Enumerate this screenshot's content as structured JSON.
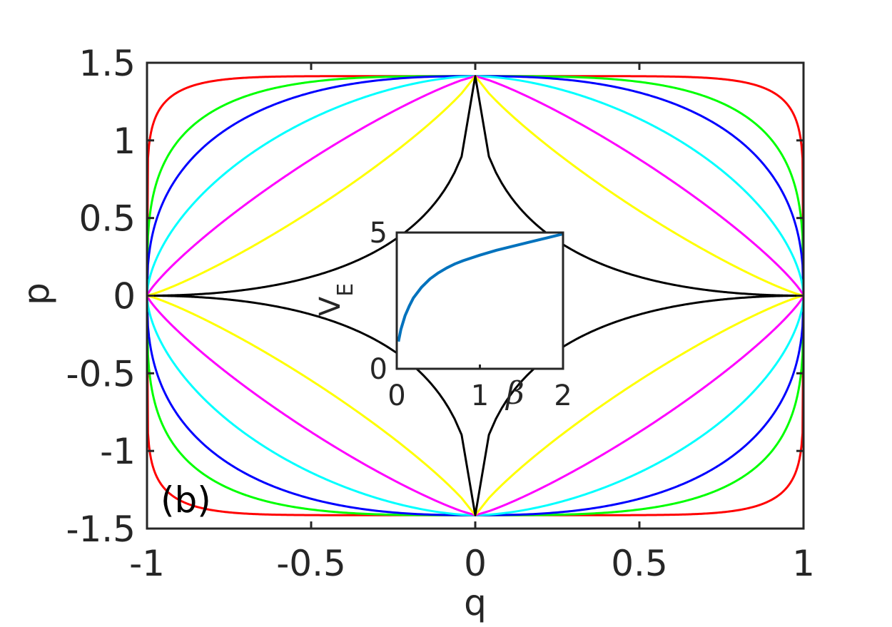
{
  "chart_data": [
    {
      "type": "line",
      "role": "main",
      "xlabel": "q",
      "ylabel": "p",
      "xlim": [
        -1,
        1
      ],
      "ylim": [
        -1.5,
        1.5
      ],
      "xticks": [
        -1,
        -0.5,
        0,
        0.5,
        1
      ],
      "yticks": [
        -1.5,
        -1,
        -0.5,
        0,
        0.5,
        1,
        1.5
      ],
      "xtick_labels": [
        "-1",
        "-0.5",
        "0",
        "0.5",
        "1"
      ],
      "ytick_labels": [
        "-1.5",
        "-1",
        "-0.5",
        "0",
        "0.5",
        "1",
        "1.5"
      ],
      "grid": false,
      "annotation": "(b)",
      "p_max": 1.414,
      "series": [
        {
          "color": "#ff0000",
          "exponent": 8,
          "note": "closed curve p = ±1.414·(1-|q|^8)^(1/8)"
        },
        {
          "color": "#00ff00",
          "exponent": 3.5,
          "note": "closed curve p = ±1.414·(1-|q|^3.5)^(1/3.5)"
        },
        {
          "color": "#0000ff",
          "exponent": 2.5,
          "note": "closed curve p = ±1.414·(1-|q|^2.5)^(1/2.5)"
        },
        {
          "color": "#00ffff",
          "exponent": 1.7,
          "note": "closed curve p = ±1.414·(1-|q|^1.7)^(1/1.7)"
        },
        {
          "color": "#ff00ff",
          "exponent": 1.2,
          "note": "closed curve p = ±1.414·(1-|q|^1.2)^(1/1.2)"
        },
        {
          "color": "#ffff00",
          "exponent": 0.85,
          "note": "closed curve p = ±1.414·(1-|q|^0.85)^(1/0.85)"
        },
        {
          "color": "#000000",
          "exponent": 0.5,
          "note": "closed curve p = ±1.414·(1-|q|^0.5)^(1/0.5)"
        }
      ]
    },
    {
      "type": "line",
      "role": "inset",
      "xlabel": "β",
      "ylabel": "V_E",
      "ylabel_main": "V",
      "ylabel_sub": "E",
      "xlim": [
        0,
        2
      ],
      "ylim": [
        0,
        5
      ],
      "xticks": [
        0,
        1,
        2
      ],
      "yticks": [
        0,
        5
      ],
      "xtick_labels": [
        "0",
        "1",
        "2"
      ],
      "ytick_labels": [
        "0",
        "5"
      ],
      "grid": false,
      "series": [
        {
          "color": "#0072bd",
          "x": [
            0.02,
            0.05,
            0.1,
            0.15,
            0.2,
            0.3,
            0.4,
            0.5,
            0.6,
            0.7,
            0.8,
            1.0,
            1.2,
            1.4,
            1.6,
            1.8,
            2.0
          ],
          "y": [
            1.0,
            1.45,
            1.95,
            2.3,
            2.6,
            3.0,
            3.3,
            3.52,
            3.7,
            3.85,
            3.97,
            4.17,
            4.35,
            4.5,
            4.65,
            4.8,
            4.95
          ]
        }
      ]
    }
  ]
}
